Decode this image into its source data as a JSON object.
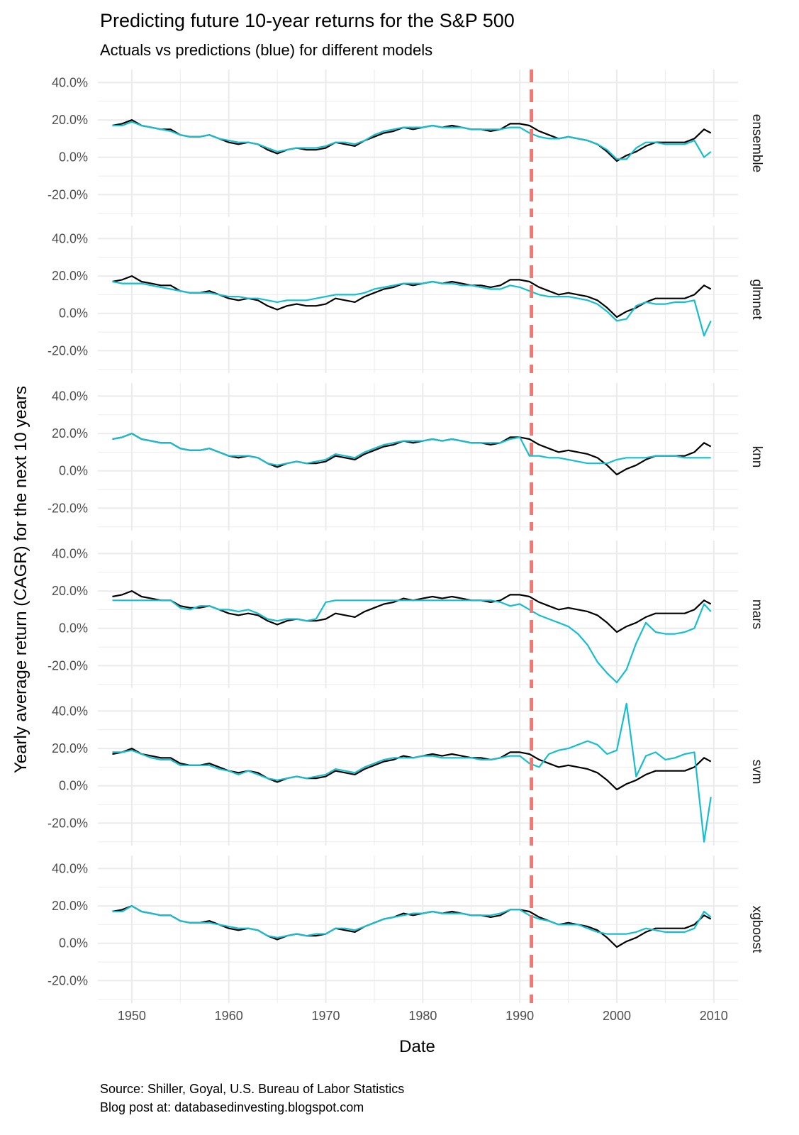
{
  "chart_data": {
    "type": "line",
    "title": "Predicting future 10-year returns for the S&P 500",
    "subtitle": "Actuals vs predictions (blue) for different models",
    "xlabel": "Date",
    "ylabel": "Yearly average return (CAGR) for the next 10 years",
    "caption_lines": [
      "Source: Shiller, Goyal, U.S. Bureau of Labor Statistics",
      "Blog post at: databasedinvesting.blogspot.com"
    ],
    "xlim": [
      1946.5,
      2012.5
    ],
    "ylim": [
      -0.32,
      0.47
    ],
    "x_ticks": [
      1950,
      1960,
      1970,
      1980,
      1990,
      2000,
      2010
    ],
    "y_ticks": [
      -0.2,
      0.0,
      0.2,
      0.4
    ],
    "y_tick_labels": [
      "-20.0%",
      "0.0%",
      "20.0%",
      "40.0%"
    ],
    "vline_x": 1991.2,
    "grid": true,
    "colors": {
      "actual": "#000000",
      "predicted": "#17becf",
      "vline": "#f8766d",
      "grid": "#ebebeb"
    },
    "actual": {
      "x": [
        1948,
        1949,
        1950,
        1951,
        1952,
        1953,
        1954,
        1955,
        1956,
        1957,
        1958,
        1959,
        1960,
        1961,
        1962,
        1963,
        1964,
        1965,
        1966,
        1967,
        1968,
        1969,
        1970,
        1971,
        1972,
        1973,
        1974,
        1975,
        1976,
        1977,
        1978,
        1979,
        1980,
        1981,
        1982,
        1983,
        1984,
        1985,
        1986,
        1987,
        1988,
        1989,
        1990,
        1991,
        1992,
        1993,
        1994,
        1995,
        1996,
        1997,
        1998,
        1999,
        2000,
        2001,
        2002,
        2003,
        2004,
        2005,
        2006,
        2007,
        2008,
        2009,
        2009.7
      ],
      "values": [
        0.17,
        0.18,
        0.2,
        0.17,
        0.16,
        0.15,
        0.15,
        0.12,
        0.11,
        0.11,
        0.12,
        0.1,
        0.08,
        0.07,
        0.08,
        0.07,
        0.04,
        0.02,
        0.04,
        0.05,
        0.04,
        0.04,
        0.05,
        0.08,
        0.07,
        0.06,
        0.09,
        0.11,
        0.13,
        0.14,
        0.16,
        0.15,
        0.16,
        0.17,
        0.16,
        0.17,
        0.16,
        0.15,
        0.15,
        0.14,
        0.15,
        0.18,
        0.18,
        0.17,
        0.14,
        0.12,
        0.1,
        0.11,
        0.1,
        0.09,
        0.07,
        0.03,
        -0.02,
        0.01,
        0.03,
        0.06,
        0.08,
        0.08,
        0.08,
        0.08,
        0.1,
        0.15,
        0.13
      ]
    },
    "panels": [
      {
        "label": "ensemble",
        "values": [
          0.17,
          0.17,
          0.19,
          0.17,
          0.16,
          0.15,
          0.14,
          0.12,
          0.11,
          0.11,
          0.12,
          0.1,
          0.09,
          0.08,
          0.08,
          0.07,
          0.05,
          0.03,
          0.04,
          0.05,
          0.05,
          0.05,
          0.06,
          0.08,
          0.08,
          0.07,
          0.09,
          0.12,
          0.14,
          0.15,
          0.16,
          0.16,
          0.16,
          0.17,
          0.16,
          0.16,
          0.16,
          0.15,
          0.15,
          0.15,
          0.15,
          0.16,
          0.16,
          0.13,
          0.11,
          0.1,
          0.1,
          0.11,
          0.1,
          0.09,
          0.07,
          0.04,
          -0.01,
          -0.01,
          0.05,
          0.08,
          0.08,
          0.07,
          0.07,
          0.07,
          0.09,
          0.0,
          0.03
        ]
      },
      {
        "label": "glmnet",
        "values": [
          0.17,
          0.16,
          0.16,
          0.16,
          0.15,
          0.14,
          0.13,
          0.12,
          0.11,
          0.11,
          0.11,
          0.1,
          0.09,
          0.09,
          0.08,
          0.08,
          0.07,
          0.06,
          0.07,
          0.07,
          0.07,
          0.08,
          0.09,
          0.1,
          0.1,
          0.1,
          0.11,
          0.13,
          0.14,
          0.15,
          0.16,
          0.16,
          0.16,
          0.17,
          0.16,
          0.16,
          0.15,
          0.15,
          0.14,
          0.13,
          0.13,
          0.15,
          0.14,
          0.12,
          0.1,
          0.09,
          0.09,
          0.09,
          0.08,
          0.07,
          0.05,
          0.01,
          -0.04,
          -0.03,
          0.04,
          0.06,
          0.05,
          0.05,
          0.06,
          0.06,
          0.07,
          -0.12,
          -0.04
        ]
      },
      {
        "label": "knn",
        "values": [
          0.17,
          0.18,
          0.2,
          0.17,
          0.16,
          0.15,
          0.15,
          0.12,
          0.11,
          0.11,
          0.12,
          0.1,
          0.08,
          0.08,
          0.08,
          0.07,
          0.04,
          0.03,
          0.04,
          0.05,
          0.04,
          0.05,
          0.06,
          0.09,
          0.08,
          0.07,
          0.1,
          0.12,
          0.14,
          0.15,
          0.16,
          0.16,
          0.16,
          0.17,
          0.16,
          0.17,
          0.16,
          0.15,
          0.15,
          0.15,
          0.15,
          0.17,
          0.18,
          0.08,
          0.08,
          0.07,
          0.07,
          0.06,
          0.05,
          0.04,
          0.04,
          0.04,
          0.06,
          0.07,
          0.07,
          0.07,
          0.08,
          0.08,
          0.08,
          0.07,
          0.07,
          0.07,
          0.07
        ]
      },
      {
        "label": "mars",
        "values": [
          0.15,
          0.15,
          0.15,
          0.15,
          0.15,
          0.15,
          0.15,
          0.11,
          0.1,
          0.12,
          0.12,
          0.1,
          0.1,
          0.09,
          0.1,
          0.08,
          0.05,
          0.04,
          0.05,
          0.05,
          0.04,
          0.05,
          0.14,
          0.15,
          0.15,
          0.15,
          0.15,
          0.15,
          0.15,
          0.15,
          0.15,
          0.15,
          0.15,
          0.15,
          0.15,
          0.15,
          0.15,
          0.15,
          0.15,
          0.15,
          0.14,
          0.12,
          0.13,
          0.1,
          0.07,
          0.05,
          0.03,
          0.01,
          -0.03,
          -0.09,
          -0.18,
          -0.24,
          -0.29,
          -0.22,
          -0.08,
          0.03,
          -0.02,
          -0.03,
          -0.03,
          -0.02,
          0.0,
          0.13,
          0.09
        ]
      },
      {
        "label": "svm",
        "values": [
          0.18,
          0.18,
          0.19,
          0.17,
          0.15,
          0.14,
          0.14,
          0.11,
          0.11,
          0.11,
          0.11,
          0.09,
          0.08,
          0.06,
          0.08,
          0.06,
          0.04,
          0.03,
          0.04,
          0.05,
          0.04,
          0.05,
          0.06,
          0.09,
          0.08,
          0.07,
          0.1,
          0.12,
          0.14,
          0.15,
          0.15,
          0.15,
          0.16,
          0.16,
          0.15,
          0.15,
          0.15,
          0.15,
          0.14,
          0.14,
          0.15,
          0.16,
          0.16,
          0.12,
          0.1,
          0.17,
          0.19,
          0.2,
          0.22,
          0.24,
          0.22,
          0.17,
          0.19,
          0.44,
          0.05,
          0.16,
          0.18,
          0.14,
          0.15,
          0.17,
          0.18,
          -0.3,
          -0.06
        ]
      },
      {
        "label": "xgboost",
        "values": [
          0.17,
          0.17,
          0.2,
          0.17,
          0.16,
          0.15,
          0.15,
          0.12,
          0.11,
          0.11,
          0.11,
          0.1,
          0.09,
          0.08,
          0.08,
          0.07,
          0.04,
          0.03,
          0.04,
          0.05,
          0.04,
          0.05,
          0.05,
          0.08,
          0.08,
          0.07,
          0.09,
          0.11,
          0.13,
          0.14,
          0.15,
          0.16,
          0.16,
          0.17,
          0.16,
          0.16,
          0.16,
          0.15,
          0.15,
          0.15,
          0.16,
          0.18,
          0.18,
          0.15,
          0.13,
          0.12,
          0.1,
          0.1,
          0.1,
          0.08,
          0.06,
          0.05,
          0.05,
          0.05,
          0.06,
          0.08,
          0.07,
          0.06,
          0.06,
          0.06,
          0.08,
          0.17,
          0.14
        ]
      }
    ]
  }
}
